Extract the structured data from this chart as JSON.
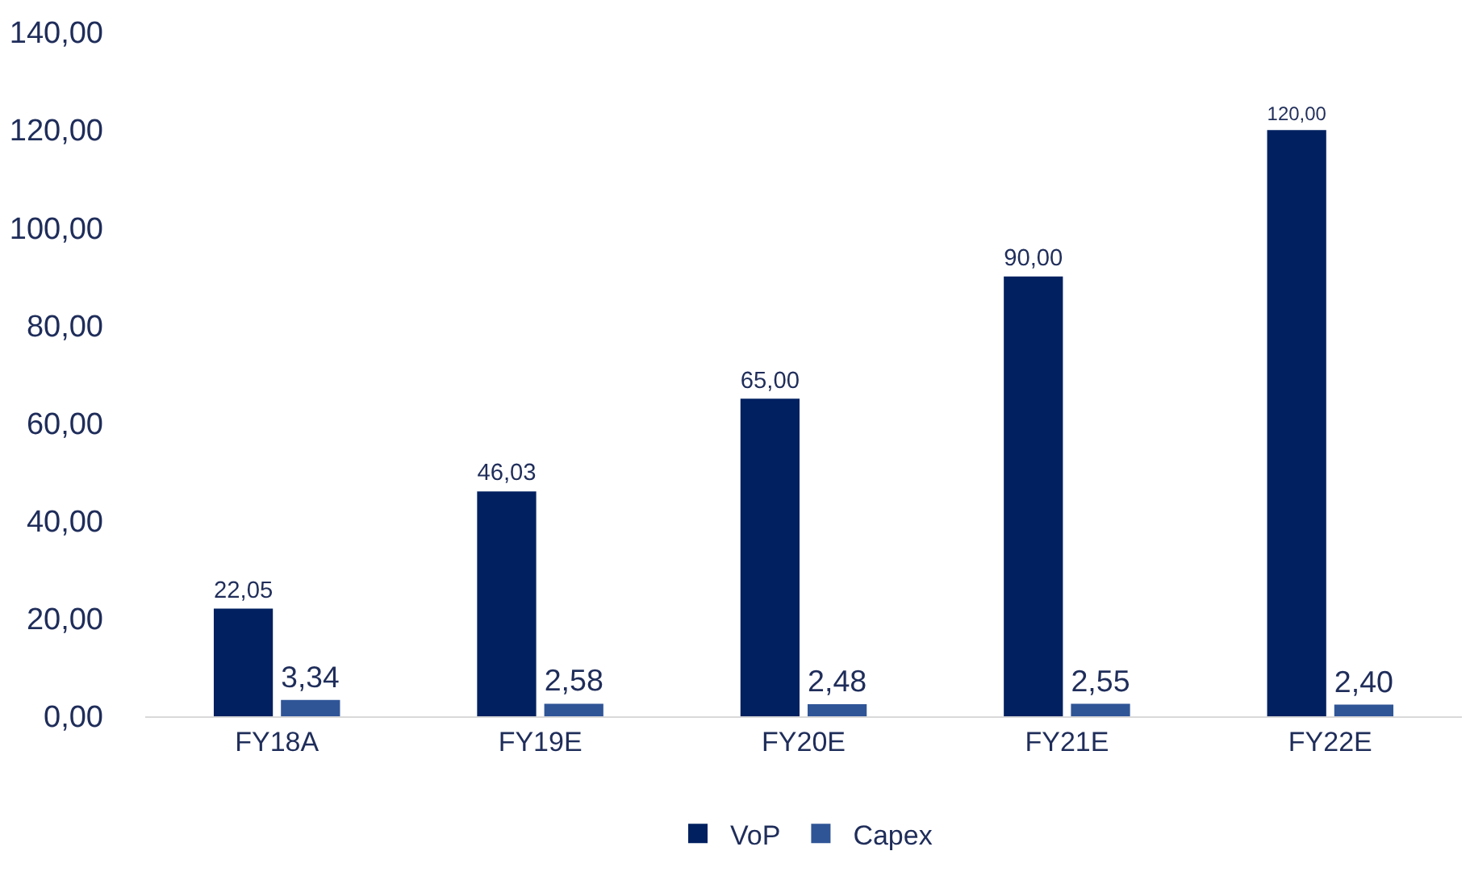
{
  "chart_data": {
    "type": "bar",
    "categories": [
      "FY18A",
      "FY19E",
      "FY20E",
      "FY21E",
      "FY22E"
    ],
    "series": [
      {
        "name": "VoP",
        "color": "#002060",
        "values": [
          22.05,
          46.03,
          65,
          90,
          120
        ],
        "value_labels": [
          "22,05",
          "46,03",
          "65,00",
          "90,00",
          "120,00"
        ]
      },
      {
        "name": "Capex",
        "color": "#2f5597",
        "values": [
          3.34,
          2.58,
          2.48,
          2.55,
          2.4
        ],
        "value_labels": [
          "3,34",
          "2,58",
          "2,48",
          "2,55",
          "2,40"
        ]
      }
    ],
    "ylim": [
      0,
      140
    ],
    "yticks": [
      {
        "value": 0,
        "label": "0,00"
      },
      {
        "value": 20,
        "label": "20,00"
      },
      {
        "value": 40,
        "label": "40,00"
      },
      {
        "value": 60,
        "label": "60,00"
      },
      {
        "value": 80,
        "label": "80,00"
      },
      {
        "value": 100,
        "label": "100,00"
      },
      {
        "value": 120,
        "label": "120,00"
      },
      {
        "value": 140,
        "label": "140,00"
      }
    ],
    "grid": false,
    "legend": "bottom"
  }
}
